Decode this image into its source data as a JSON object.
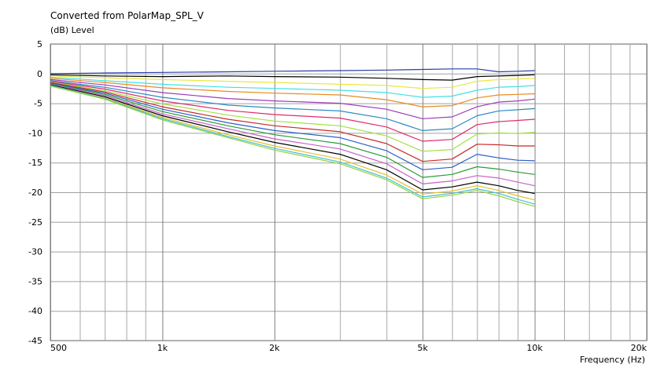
{
  "chart_data": {
    "type": "line",
    "title": "Converted from PolarMap_SPL_V",
    "ylabel": "(dB)  Level",
    "xlabel": "Frequency  (Hz)",
    "x_scale": "log",
    "xlim": [
      500,
      20000
    ],
    "ylim": [
      -45,
      5
    ],
    "grid": true,
    "y_ticks": [
      5,
      0,
      -5,
      -10,
      -15,
      -20,
      -25,
      -30,
      -35,
      -40,
      -45
    ],
    "x_ticks": [
      {
        "value": 500,
        "label": "500"
      },
      {
        "value": 1000,
        "label": "1k"
      },
      {
        "value": 2000,
        "label": "2k"
      },
      {
        "value": 5000,
        "label": "5k"
      },
      {
        "value": 10000,
        "label": "10k"
      },
      {
        "value": 20000,
        "label": "20k"
      }
    ],
    "x_minor": [
      600,
      700,
      800,
      900,
      3000,
      4000,
      6000,
      7000,
      8000,
      9000
    ],
    "x": [
      500,
      700,
      1000,
      1500,
      2000,
      3000,
      4000,
      5000,
      6000,
      7000,
      8000,
      9000,
      10000
    ],
    "series": [
      {
        "color": "#2a3fa8",
        "values": [
          0.0,
          0.1,
          0.2,
          0.3,
          0.4,
          0.5,
          0.6,
          0.7,
          0.8,
          0.8,
          0.3,
          0.4,
          0.5
        ]
      },
      {
        "color": "#000000",
        "values": [
          -0.2,
          -0.4,
          -0.5,
          -0.4,
          -0.5,
          -0.6,
          -0.8,
          -1.0,
          -1.1,
          -0.5,
          -0.4,
          -0.3,
          -0.2
        ]
      },
      {
        "color": "#e8e840",
        "values": [
          -0.4,
          -0.7,
          -1.0,
          -1.3,
          -1.5,
          -1.8,
          -2.0,
          -2.5,
          -2.3,
          -1.3,
          -1.0,
          -0.9,
          -0.8
        ]
      },
      {
        "color": "#40e0e8",
        "values": [
          -0.6,
          -1.2,
          -1.8,
          -2.3,
          -2.5,
          -2.8,
          -3.2,
          -4.0,
          -3.8,
          -2.8,
          -2.3,
          -2.2,
          -2.0
        ]
      },
      {
        "color": "#e88a20",
        "values": [
          -0.8,
          -1.5,
          -2.4,
          -3.0,
          -3.3,
          -3.6,
          -4.4,
          -5.6,
          -5.4,
          -4.1,
          -3.6,
          -3.5,
          -3.4
        ]
      },
      {
        "color": "#9b3db8",
        "values": [
          -1.0,
          -1.9,
          -3.2,
          -4.2,
          -4.6,
          -5.0,
          -6.0,
          -7.6,
          -7.3,
          -5.6,
          -4.8,
          -4.6,
          -4.3
        ]
      },
      {
        "color": "#2a8ac8",
        "values": [
          -1.2,
          -2.3,
          -4.0,
          -5.3,
          -5.8,
          -6.3,
          -7.6,
          -9.6,
          -9.3,
          -7.1,
          -6.3,
          -6.1,
          -5.9
        ]
      },
      {
        "color": "#e02a70",
        "values": [
          -1.3,
          -2.6,
          -4.6,
          -6.2,
          -6.9,
          -7.5,
          -9.0,
          -11.4,
          -11.1,
          -8.6,
          -8.1,
          -7.9,
          -7.7
        ]
      },
      {
        "color": "#a0e040",
        "values": [
          -1.4,
          -2.9,
          -5.1,
          -7.0,
          -8.0,
          -8.8,
          -10.5,
          -13.1,
          -12.8,
          -10.2,
          -10.0,
          -10.1,
          -9.9
        ]
      },
      {
        "color": "#c82a2a",
        "values": [
          -1.5,
          -3.1,
          -5.6,
          -7.7,
          -8.8,
          -9.8,
          -11.8,
          -14.8,
          -14.4,
          -11.9,
          -12.0,
          -12.2,
          -12.2
        ]
      },
      {
        "color": "#2a60c8",
        "values": [
          -1.6,
          -3.3,
          -6.0,
          -8.3,
          -9.6,
          -10.8,
          -13.0,
          -16.2,
          -15.8,
          -13.6,
          -14.2,
          -14.6,
          -14.7
        ]
      },
      {
        "color": "#2a9a3a",
        "values": [
          -1.7,
          -3.5,
          -6.4,
          -8.8,
          -10.3,
          -11.8,
          -14.1,
          -17.5,
          -17.0,
          -15.7,
          -16.1,
          -16.6,
          -17.0
        ]
      },
      {
        "color": "#c860c8",
        "values": [
          -1.8,
          -3.7,
          -6.8,
          -9.3,
          -11.0,
          -12.7,
          -15.2,
          -18.6,
          -18.1,
          -17.2,
          -17.6,
          -18.3,
          -18.9
        ]
      },
      {
        "color": "#000000",
        "values": [
          -1.9,
          -3.9,
          -7.1,
          -9.8,
          -11.6,
          -13.6,
          -16.2,
          -19.6,
          -19.1,
          -18.3,
          -18.9,
          -19.7,
          -20.2
        ]
      },
      {
        "color": "#e0c030",
        "values": [
          -2.0,
          -4.1,
          -7.4,
          -10.3,
          -12.2,
          -14.4,
          -17.1,
          -20.3,
          -19.8,
          -18.9,
          -19.7,
          -20.6,
          -21.3
        ]
      },
      {
        "color": "#40c0d0",
        "values": [
          -2.0,
          -4.2,
          -7.6,
          -10.6,
          -12.6,
          -14.9,
          -17.6,
          -20.8,
          -20.2,
          -19.4,
          -20.2,
          -21.2,
          -22.0
        ]
      },
      {
        "color": "#90d040",
        "values": [
          -2.1,
          -4.3,
          -7.8,
          -10.8,
          -12.9,
          -15.2,
          -17.9,
          -21.1,
          -20.5,
          -19.7,
          -20.6,
          -21.6,
          -22.4
        ]
      }
    ]
  }
}
